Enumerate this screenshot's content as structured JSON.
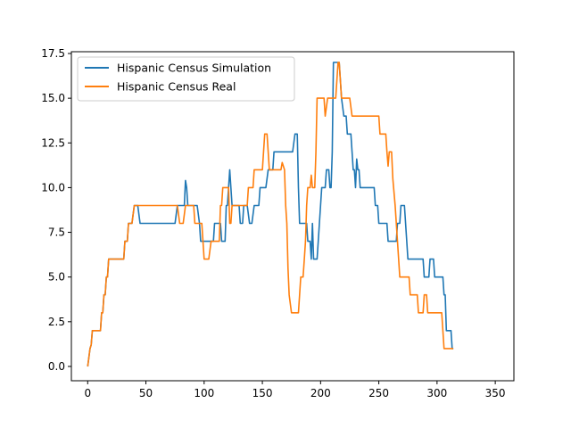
{
  "chart_data": {
    "type": "line",
    "title": "",
    "xlabel": "",
    "ylabel": "",
    "xlim": [
      -14,
      366
    ],
    "ylim": [
      -0.8,
      17.6
    ],
    "xticks": [
      0,
      50,
      100,
      150,
      200,
      250,
      300,
      350
    ],
    "xtick_labels": [
      "0",
      "50",
      "100",
      "150",
      "200",
      "250",
      "300",
      "350"
    ],
    "yticks": [
      0.0,
      2.5,
      5.0,
      7.5,
      10.0,
      12.5,
      15.0,
      17.5
    ],
    "ytick_labels": [
      "0.0",
      "2.5",
      "5.0",
      "7.5",
      "10.0",
      "12.5",
      "15.0",
      "17.5"
    ],
    "grid": false,
    "legend_position": "upper-left",
    "series": [
      {
        "name": "Hispanic Census Simulation",
        "color": "#1f77b4",
        "points": [
          [
            0,
            0
          ],
          [
            2,
            1
          ],
          [
            3,
            1.2
          ],
          [
            4,
            2
          ],
          [
            11,
            2
          ],
          [
            12,
            3
          ],
          [
            13,
            3
          ],
          [
            14,
            4
          ],
          [
            15,
            4
          ],
          [
            16,
            5
          ],
          [
            17,
            5
          ],
          [
            18,
            6
          ],
          [
            31,
            6
          ],
          [
            32,
            7
          ],
          [
            34,
            7
          ],
          [
            35,
            8
          ],
          [
            38,
            8
          ],
          [
            40,
            9
          ],
          [
            43,
            9
          ],
          [
            45,
            8
          ],
          [
            75,
            8
          ],
          [
            77,
            9
          ],
          [
            83,
            9
          ],
          [
            84,
            10.4
          ],
          [
            85,
            10
          ],
          [
            86,
            9
          ],
          [
            94,
            9
          ],
          [
            96,
            8
          ],
          [
            97,
            7
          ],
          [
            99,
            7
          ],
          [
            100,
            7
          ],
          [
            108,
            7
          ],
          [
            109,
            8
          ],
          [
            114,
            8
          ],
          [
            115,
            7
          ],
          [
            118,
            7
          ],
          [
            119,
            9
          ],
          [
            120,
            9
          ],
          [
            121,
            10
          ],
          [
            122,
            11
          ],
          [
            123,
            10
          ],
          [
            124,
            9
          ],
          [
            130,
            9
          ],
          [
            131,
            8
          ],
          [
            133,
            8
          ],
          [
            134,
            9
          ],
          [
            137,
            9
          ],
          [
            139,
            8
          ],
          [
            141,
            8
          ],
          [
            143,
            9
          ],
          [
            147,
            9
          ],
          [
            148,
            10
          ],
          [
            153,
            10
          ],
          [
            155,
            11
          ],
          [
            159,
            11
          ],
          [
            160,
            12
          ],
          [
            176,
            12
          ],
          [
            178,
            13
          ],
          [
            180,
            13
          ],
          [
            181,
            10
          ],
          [
            182,
            8
          ],
          [
            188,
            8
          ],
          [
            189,
            7
          ],
          [
            191,
            7
          ],
          [
            192,
            6
          ],
          [
            193,
            8
          ],
          [
            194,
            6
          ],
          [
            197,
            6
          ],
          [
            198,
            7
          ],
          [
            199,
            8
          ],
          [
            200,
            9
          ],
          [
            201,
            10
          ],
          [
            204,
            10
          ],
          [
            205,
            11
          ],
          [
            207,
            11
          ],
          [
            208,
            10
          ],
          [
            209,
            10
          ],
          [
            210,
            12
          ],
          [
            211,
            17
          ],
          [
            216,
            17
          ],
          [
            218,
            15
          ],
          [
            220,
            14
          ],
          [
            222,
            14
          ],
          [
            223,
            13
          ],
          [
            224,
            13
          ],
          [
            226,
            13
          ],
          [
            227,
            12
          ],
          [
            228,
            11
          ],
          [
            229,
            11
          ],
          [
            230,
            10
          ],
          [
            231,
            11.6
          ],
          [
            232,
            11
          ],
          [
            233,
            11
          ],
          [
            234,
            10
          ],
          [
            246,
            10
          ],
          [
            247,
            9
          ],
          [
            249,
            9
          ],
          [
            250,
            8
          ],
          [
            257,
            8
          ],
          [
            258,
            7
          ],
          [
            265,
            7
          ],
          [
            266,
            8
          ],
          [
            268,
            8
          ],
          [
            269,
            9
          ],
          [
            272,
            9
          ],
          [
            273,
            8
          ],
          [
            274,
            7
          ],
          [
            275,
            6
          ],
          [
            288,
            6
          ],
          [
            289,
            5
          ],
          [
            293,
            5
          ],
          [
            294,
            6
          ],
          [
            297,
            6
          ],
          [
            298,
            5
          ],
          [
            305,
            5
          ],
          [
            306,
            4
          ],
          [
            307,
            4
          ],
          [
            308,
            2
          ],
          [
            312,
            2
          ],
          [
            313,
            1
          ],
          [
            314,
            1
          ]
        ]
      },
      {
        "name": "Hispanic Census Real",
        "color": "#ff7f0e",
        "points": [
          [
            0,
            0
          ],
          [
            2,
            1
          ],
          [
            3,
            1.2
          ],
          [
            4,
            2
          ],
          [
            11,
            2
          ],
          [
            12,
            3
          ],
          [
            13,
            3
          ],
          [
            14,
            4
          ],
          [
            15,
            4
          ],
          [
            16,
            5
          ],
          [
            17,
            5
          ],
          [
            18,
            6
          ],
          [
            31,
            6
          ],
          [
            32,
            7
          ],
          [
            34,
            7
          ],
          [
            35,
            8
          ],
          [
            38,
            8
          ],
          [
            40,
            9
          ],
          [
            75,
            9
          ],
          [
            77,
            9
          ],
          [
            79,
            8
          ],
          [
            82,
            8
          ],
          [
            84,
            9
          ],
          [
            91,
            9
          ],
          [
            92,
            8
          ],
          [
            98,
            8
          ],
          [
            100,
            6
          ],
          [
            104,
            6
          ],
          [
            106,
            7
          ],
          [
            112,
            7
          ],
          [
            113,
            7
          ],
          [
            114,
            9
          ],
          [
            115,
            9
          ],
          [
            116,
            10
          ],
          [
            121,
            10
          ],
          [
            122,
            8
          ],
          [
            123,
            8
          ],
          [
            124,
            9
          ],
          [
            137,
            9
          ],
          [
            138,
            10
          ],
          [
            142,
            10
          ],
          [
            143,
            11
          ],
          [
            150,
            11
          ],
          [
            151,
            12
          ],
          [
            152,
            13
          ],
          [
            154,
            13
          ],
          [
            155,
            12
          ],
          [
            156,
            11
          ],
          [
            166,
            11
          ],
          [
            167,
            11.4
          ],
          [
            169,
            11
          ],
          [
            170,
            9
          ],
          [
            171,
            8
          ],
          [
            172,
            5.5
          ],
          [
            173,
            4
          ],
          [
            175,
            3
          ],
          [
            181,
            3
          ],
          [
            182,
            4
          ],
          [
            183,
            5
          ],
          [
            185,
            5
          ],
          [
            186,
            6
          ],
          [
            187,
            7
          ],
          [
            188,
            9
          ],
          [
            189,
            10
          ],
          [
            191,
            10
          ],
          [
            192,
            10.7
          ],
          [
            193,
            10
          ],
          [
            195,
            10
          ],
          [
            196,
            12
          ],
          [
            197,
            15
          ],
          [
            203,
            15
          ],
          [
            204,
            14
          ],
          [
            206,
            15
          ],
          [
            213,
            15
          ],
          [
            214,
            16
          ],
          [
            215,
            17
          ],
          [
            216,
            17
          ],
          [
            217,
            16
          ],
          [
            218,
            15
          ],
          [
            225,
            15
          ],
          [
            227,
            14
          ],
          [
            250,
            14
          ],
          [
            251,
            13
          ],
          [
            256,
            13
          ],
          [
            257,
            12
          ],
          [
            258,
            11.2
          ],
          [
            259,
            12
          ],
          [
            261,
            12
          ],
          [
            262,
            10.5
          ],
          [
            264,
            9
          ],
          [
            266,
            7
          ],
          [
            267,
            6
          ],
          [
            268,
            5
          ],
          [
            276,
            5
          ],
          [
            277,
            4
          ],
          [
            283,
            4
          ],
          [
            284,
            3
          ],
          [
            288,
            3
          ],
          [
            289,
            4
          ],
          [
            291,
            4
          ],
          [
            292,
            3
          ],
          [
            304,
            3
          ],
          [
            305,
            2
          ],
          [
            306,
            1
          ],
          [
            314,
            1
          ]
        ]
      }
    ]
  }
}
